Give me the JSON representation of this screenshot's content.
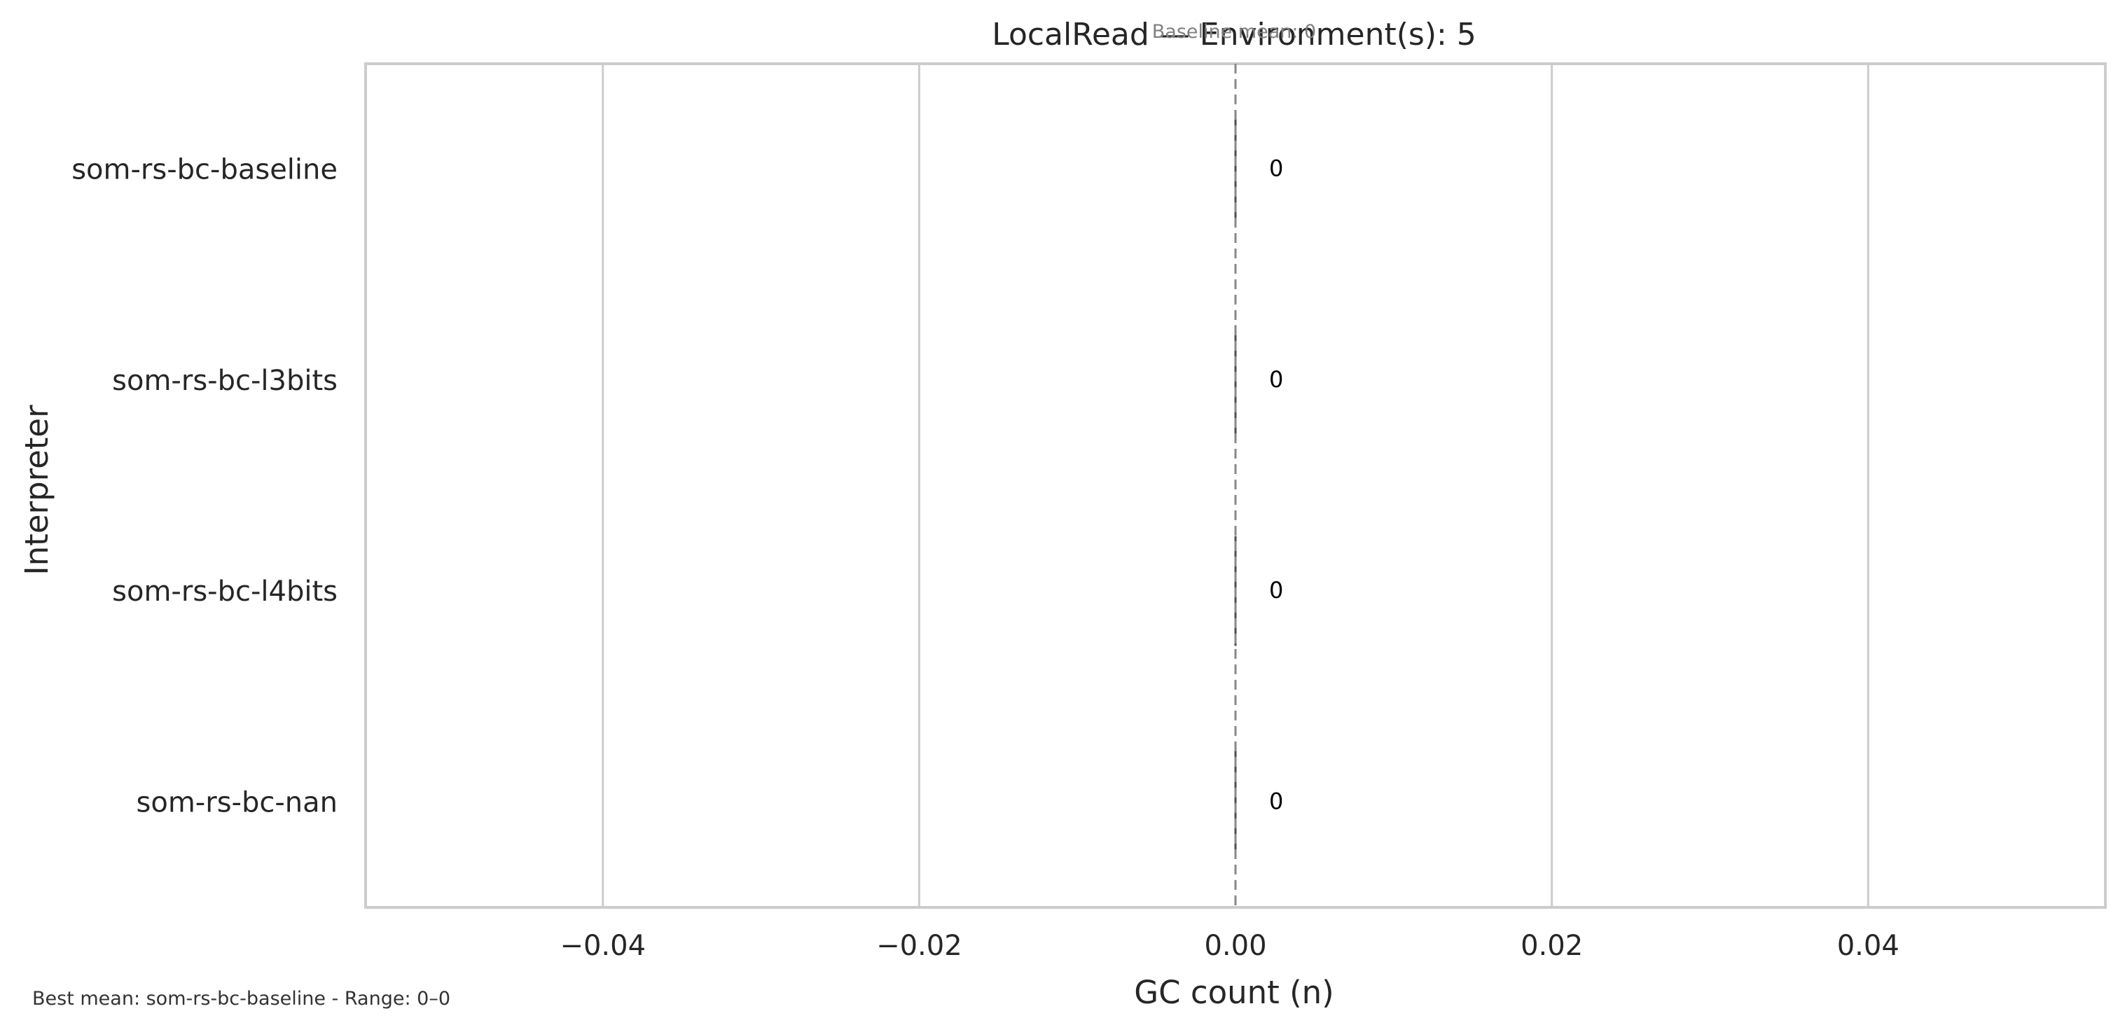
{
  "chart_data": {
    "type": "bar",
    "orientation": "horizontal",
    "title": "LocalRead — Environment(s): 5",
    "xlabel": "GC count (n)",
    "ylabel": "Interpreter",
    "categories": [
      "som-rs-bc-baseline",
      "som-rs-bc-l3bits",
      "som-rs-bc-l4bits",
      "som-rs-bc-nan"
    ],
    "values": [
      0,
      0,
      0,
      0
    ],
    "value_labels": [
      "0",
      "0",
      "0",
      "0"
    ],
    "xlim": [
      -0.055,
      0.055
    ],
    "x_ticks": [
      -0.04,
      -0.02,
      0.0,
      0.02,
      0.04
    ],
    "x_tick_labels": [
      "−0.04",
      "−0.02",
      "0.00",
      "0.02",
      "0.04"
    ],
    "grid": "vertical",
    "reference_line": {
      "x": 0,
      "label": "Baseline mean: 0",
      "style": "dashed"
    },
    "footer_note": "Best mean: som-rs-bc-baseline - Range: 0–0",
    "colors": {
      "grid": "#cccccc",
      "frame": "#cccccc",
      "bar_edge": "#4d4d4d",
      "reference_line": "#888888"
    }
  }
}
